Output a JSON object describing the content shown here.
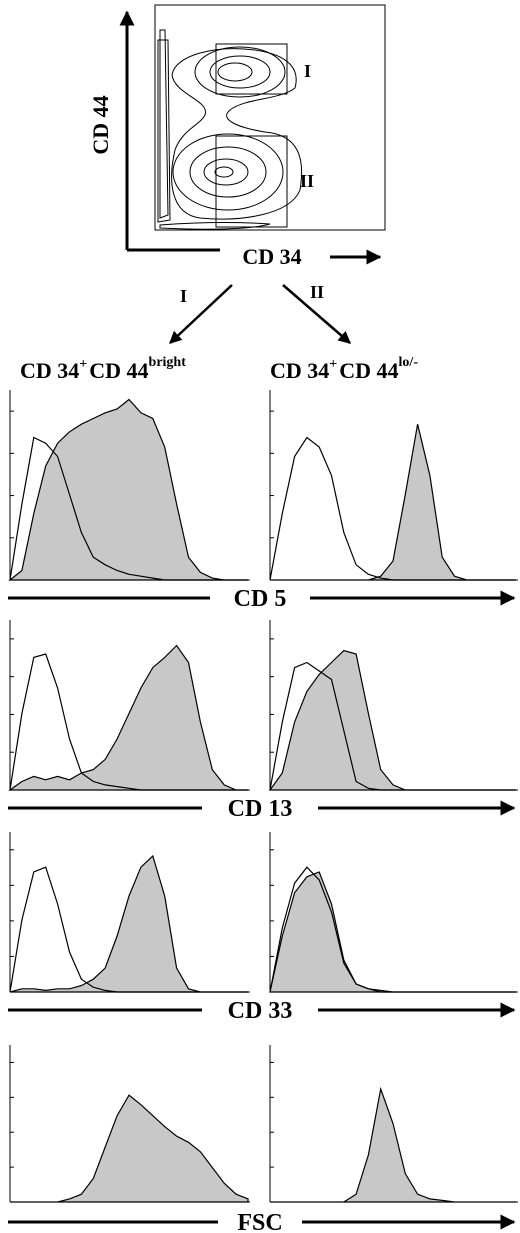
{
  "chart_data": [
    {
      "type": "contour",
      "xlabel": "CD 34",
      "ylabel": "CD 44",
      "gates": [
        {
          "label": "I"
        },
        {
          "label": "II"
        }
      ],
      "arrows": [
        {
          "label": "I",
          "population": {
            "main": "CD 34",
            "sup1": "+",
            "mid": "CD 44",
            "sup2": "bright"
          }
        },
        {
          "label": "II",
          "population": {
            "main": "CD 34",
            "sup1": "+",
            "mid": "CD 44",
            "sup2": "lo/-"
          }
        }
      ]
    },
    {
      "type": "histogram",
      "xlabel": "CD 5",
      "panels": [
        {
          "population": "I",
          "series": [
            {
              "fill": "#c8c8c8",
              "x": [
                0,
                0.05,
                0.1,
                0.15,
                0.2,
                0.25,
                0.3,
                0.35,
                0.4,
                0.45,
                0.5,
                0.55,
                0.6,
                0.65,
                0.7,
                0.75,
                0.8,
                0.85,
                0.9,
                0.95,
                1
              ],
              "y": [
                0,
                0.05,
                0.35,
                0.6,
                0.72,
                0.78,
                0.82,
                0.85,
                0.88,
                0.9,
                0.95,
                0.88,
                0.85,
                0.7,
                0.4,
                0.12,
                0.04,
                0.01,
                0,
                0,
                0
              ]
            },
            {
              "fill": "none",
              "x": [
                0,
                0.05,
                0.1,
                0.15,
                0.2,
                0.25,
                0.3,
                0.35,
                0.4,
                0.45,
                0.5,
                0.55,
                0.6,
                0.65,
                0.7,
                0.75,
                0.8,
                0.85,
                0.9,
                0.95,
                1
              ],
              "y": [
                0,
                0.4,
                0.75,
                0.72,
                0.65,
                0.45,
                0.25,
                0.12,
                0.08,
                0.05,
                0.03,
                0.02,
                0.01,
                0,
                0,
                0,
                0,
                0,
                0,
                0,
                0
              ]
            }
          ]
        },
        {
          "population": "II",
          "series": [
            {
              "fill": "#c8c8c8",
              "x": [
                0,
                0.05,
                0.1,
                0.15,
                0.2,
                0.25,
                0.3,
                0.35,
                0.4,
                0.45,
                0.5,
                0.55,
                0.6,
                0.65,
                0.7,
                0.75,
                0.8,
                0.85,
                0.9,
                0.95,
                1
              ],
              "y": [
                0,
                0,
                0,
                0,
                0,
                0,
                0,
                0,
                0,
                0.02,
                0.1,
                0.45,
                0.82,
                0.55,
                0.12,
                0.02,
                0,
                0,
                0,
                0,
                0
              ]
            },
            {
              "fill": "none",
              "x": [
                0,
                0.05,
                0.1,
                0.15,
                0.2,
                0.25,
                0.3,
                0.35,
                0.4,
                0.45,
                0.5,
                0.55,
                0.6,
                0.65,
                0.7,
                0.75,
                0.8,
                0.85,
                0.9,
                0.95,
                1
              ],
              "y": [
                0,
                0.35,
                0.65,
                0.75,
                0.7,
                0.55,
                0.25,
                0.08,
                0.03,
                0.01,
                0,
                0,
                0,
                0,
                0,
                0,
                0,
                0,
                0,
                0,
                0
              ]
            }
          ]
        }
      ]
    },
    {
      "type": "histogram",
      "xlabel": "CD 13",
      "panels": [
        {
          "population": "I",
          "series": [
            {
              "fill": "#c8c8c8",
              "x": [
                0,
                0.05,
                0.1,
                0.15,
                0.2,
                0.25,
                0.3,
                0.35,
                0.4,
                0.45,
                0.5,
                0.55,
                0.6,
                0.65,
                0.7,
                0.75,
                0.8,
                0.85,
                0.9,
                0.95,
                1
              ],
              "y": [
                0,
                0.05,
                0.08,
                0.06,
                0.08,
                0.06,
                0.1,
                0.12,
                0.18,
                0.3,
                0.45,
                0.6,
                0.72,
                0.78,
                0.85,
                0.75,
                0.4,
                0.12,
                0.03,
                0,
                0
              ]
            },
            {
              "fill": "none",
              "x": [
                0,
                0.05,
                0.1,
                0.15,
                0.2,
                0.25,
                0.3,
                0.35,
                0.4,
                0.45,
                0.5,
                0.55,
                0.6,
                0.65,
                0.7,
                0.75,
                0.8,
                0.85,
                0.9,
                0.95,
                1
              ],
              "y": [
                0,
                0.45,
                0.78,
                0.8,
                0.6,
                0.3,
                0.1,
                0.05,
                0.03,
                0.02,
                0.01,
                0,
                0,
                0,
                0,
                0,
                0,
                0,
                0,
                0,
                0
              ]
            }
          ]
        },
        {
          "population": "II",
          "series": [
            {
              "fill": "#c8c8c8",
              "x": [
                0,
                0.05,
                0.1,
                0.15,
                0.2,
                0.25,
                0.3,
                0.35,
                0.4,
                0.45,
                0.5,
                0.55,
                0.6,
                0.65,
                0.7,
                0.75,
                0.8,
                0.85,
                0.9,
                0.95,
                1
              ],
              "y": [
                0,
                0.1,
                0.4,
                0.58,
                0.68,
                0.75,
                0.82,
                0.8,
                0.45,
                0.12,
                0.03,
                0,
                0,
                0,
                0,
                0,
                0,
                0,
                0,
                0,
                0
              ]
            },
            {
              "fill": "none",
              "x": [
                0,
                0.05,
                0.1,
                0.15,
                0.2,
                0.25,
                0.3,
                0.35,
                0.4,
                0.45,
                0.5,
                0.55,
                0.6,
                0.65,
                0.7,
                0.75,
                0.8,
                0.85,
                0.9,
                0.95,
                1
              ],
              "y": [
                0,
                0.4,
                0.72,
                0.75,
                0.7,
                0.65,
                0.35,
                0.05,
                0.01,
                0,
                0,
                0,
                0,
                0,
                0,
                0,
                0,
                0,
                0,
                0,
                0
              ]
            }
          ]
        }
      ]
    },
    {
      "type": "histogram",
      "xlabel": "CD 33",
      "panels": [
        {
          "population": "I",
          "series": [
            {
              "fill": "#c8c8c8",
              "x": [
                0,
                0.05,
                0.1,
                0.15,
                0.2,
                0.25,
                0.3,
                0.35,
                0.4,
                0.45,
                0.5,
                0.55,
                0.6,
                0.65,
                0.7,
                0.75,
                0.8,
                0.85,
                0.9,
                0.95,
                1
              ],
              "y": [
                0,
                0.02,
                0.02,
                0.01,
                0.02,
                0.02,
                0.04,
                0.08,
                0.15,
                0.35,
                0.6,
                0.78,
                0.85,
                0.6,
                0.15,
                0.02,
                0,
                0,
                0,
                0,
                0
              ]
            },
            {
              "fill": "none",
              "x": [
                0,
                0.05,
                0.1,
                0.15,
                0.2,
                0.25,
                0.3,
                0.35,
                0.4,
                0.45,
                0.5,
                0.55,
                0.6,
                0.65,
                0.7,
                0.75,
                0.8,
                0.85,
                0.9,
                0.95,
                1
              ],
              "y": [
                0,
                0.45,
                0.75,
                0.78,
                0.55,
                0.25,
                0.08,
                0.03,
                0.01,
                0,
                0,
                0,
                0,
                0,
                0,
                0,
                0,
                0,
                0,
                0,
                0
              ]
            }
          ]
        },
        {
          "population": "II",
          "series": [
            {
              "fill": "#c8c8c8",
              "x": [
                0,
                0.05,
                0.1,
                0.15,
                0.2,
                0.25,
                0.3,
                0.35,
                0.4,
                0.45,
                0.5,
                0.55,
                0.6,
                0.65,
                0.7,
                0.75,
                0.8,
                0.85,
                0.9,
                0.95,
                1
              ],
              "y": [
                0,
                0.35,
                0.62,
                0.72,
                0.75,
                0.55,
                0.2,
                0.05,
                0.02,
                0.01,
                0,
                0,
                0,
                0,
                0,
                0,
                0,
                0,
                0,
                0,
                0
              ]
            },
            {
              "fill": "none",
              "x": [
                0,
                0.05,
                0.1,
                0.15,
                0.2,
                0.25,
                0.3,
                0.35,
                0.4,
                0.45,
                0.5,
                0.55,
                0.6,
                0.65,
                0.7,
                0.75,
                0.8,
                0.85,
                0.9,
                0.95,
                1
              ],
              "y": [
                0,
                0.4,
                0.68,
                0.78,
                0.7,
                0.5,
                0.18,
                0.05,
                0.02,
                0,
                0,
                0,
                0,
                0,
                0,
                0,
                0,
                0,
                0,
                0,
                0
              ]
            }
          ]
        }
      ]
    },
    {
      "type": "histogram",
      "xlabel": "FSC",
      "panels": [
        {
          "population": "I",
          "series": [
            {
              "fill": "#c8c8c8",
              "x": [
                0,
                0.05,
                0.1,
                0.15,
                0.2,
                0.25,
                0.3,
                0.35,
                0.4,
                0.45,
                0.5,
                0.55,
                0.6,
                0.65,
                0.7,
                0.75,
                0.8,
                0.85,
                0.9,
                0.95,
                1
              ],
              "y": [
                0,
                0,
                0,
                0,
                0,
                0.02,
                0.05,
                0.15,
                0.35,
                0.55,
                0.68,
                0.62,
                0.55,
                0.48,
                0.42,
                0.38,
                0.32,
                0.22,
                0.12,
                0.05,
                0.02
              ]
            }
          ]
        },
        {
          "population": "II",
          "series": [
            {
              "fill": "#c8c8c8",
              "x": [
                0,
                0.05,
                0.1,
                0.15,
                0.2,
                0.25,
                0.3,
                0.35,
                0.4,
                0.45,
                0.5,
                0.55,
                0.6,
                0.65,
                0.7,
                0.75,
                0.8,
                0.85,
                0.9,
                0.95,
                1
              ],
              "y": [
                0,
                0,
                0,
                0,
                0,
                0,
                0,
                0.05,
                0.3,
                0.72,
                0.5,
                0.18,
                0.05,
                0.02,
                0.01,
                0,
                0,
                0,
                0,
                0,
                0
              ]
            }
          ]
        }
      ]
    }
  ]
}
